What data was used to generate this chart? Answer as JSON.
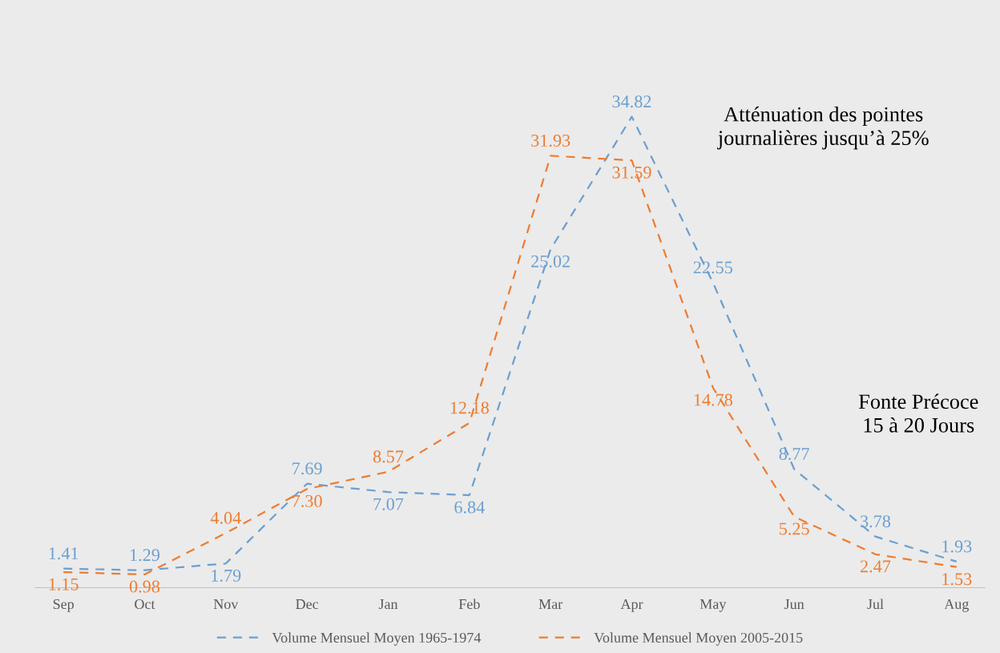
{
  "chart_data": {
    "type": "line",
    "categories": [
      "Sep",
      "Oct",
      "Nov",
      "Dec",
      "Jan",
      "Feb",
      "Mar",
      "Apr",
      "May",
      "Jun",
      "Jul",
      "Aug"
    ],
    "series": [
      {
        "name": "Volume Mensuel Moyen 1965-1974",
        "color": "#6b9fd1",
        "values": [
          1.41,
          1.29,
          1.79,
          7.69,
          7.07,
          6.84,
          25.02,
          34.82,
          22.55,
          8.77,
          3.78,
          1.93
        ],
        "value_labels": [
          "1.41",
          "1.29",
          "1.79",
          "7.69",
          "7.07",
          "6.84",
          "25.02",
          "34.82",
          "22.55",
          "8.77",
          "3.78",
          "1.93"
        ]
      },
      {
        "name": "Volume Mensuel Moyen 2005-2015",
        "color": "#ed7d31",
        "values": [
          1.15,
          0.98,
          4.04,
          7.3,
          8.57,
          12.18,
          31.93,
          31.59,
          14.78,
          5.25,
          2.47,
          1.53
        ],
        "value_labels": [
          "1.15",
          "0.98",
          "4.04",
          "7.30",
          "8.57",
          "12.18",
          "31.93",
          "31.59",
          "14.78",
          "5.25",
          "2.47",
          "1.53"
        ]
      }
    ],
    "relative": false,
    "annotations": [
      "Atténuation des pointes\njournalières jusqu’à 25%",
      "Fonte Précoce\n15 à 20 Jours"
    ],
    "line_style": "dashed",
    "marker": "none",
    "grid": false,
    "legend": "bottom",
    "tick_labels": "x"
  }
}
